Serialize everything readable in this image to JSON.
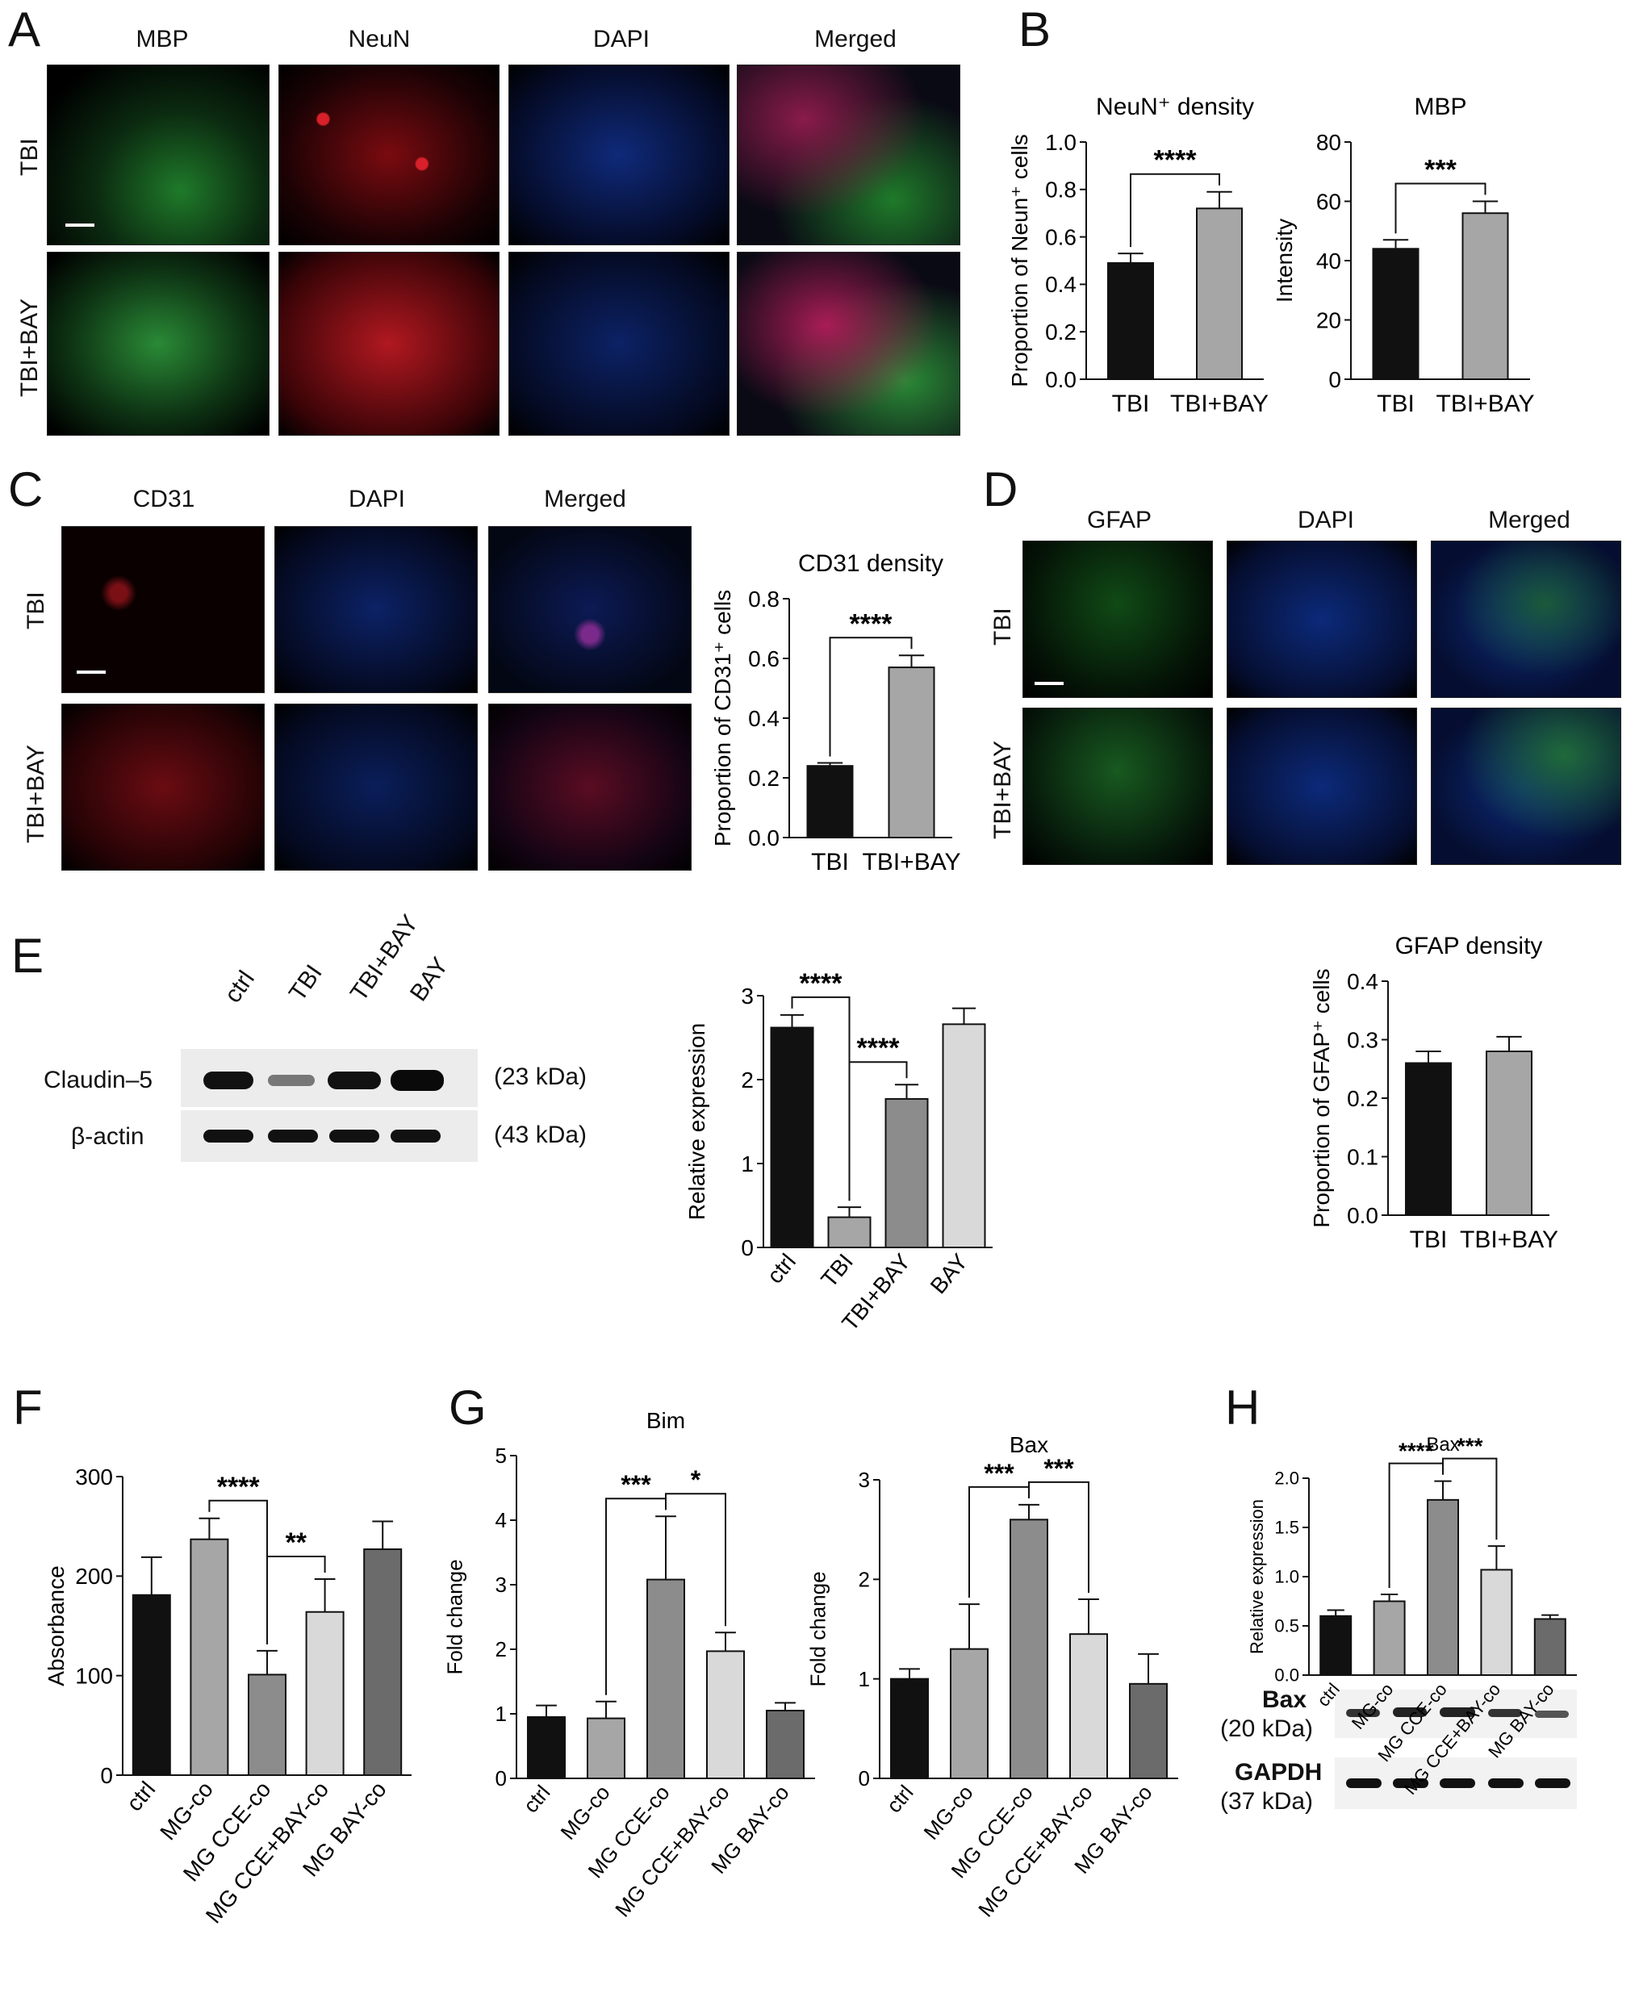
{
  "panels": [
    "A",
    "B",
    "C",
    "D",
    "E",
    "F",
    "G",
    "H"
  ],
  "panelA": {
    "columns": [
      "MBP",
      "NeuN",
      "DAPI",
      "Merged"
    ],
    "rows": [
      "TBI",
      "TBI+BAY"
    ]
  },
  "panelC": {
    "columns": [
      "CD31",
      "DAPI",
      "Merged"
    ],
    "rows": [
      "TBI",
      "TBI+BAY"
    ]
  },
  "panelD": {
    "columns": [
      "GFAP",
      "DAPI",
      "Merged"
    ],
    "rows": [
      "TBI",
      "TBI+BAY"
    ]
  },
  "panelE_blot": {
    "lanes": [
      "ctrl",
      "TBI",
      "TBI+BAY",
      "BAY"
    ],
    "bands": [
      {
        "name": "Claudin–5",
        "size": "(23 kDa)"
      },
      {
        "name": "β-actin",
        "size": "(43 kDa)"
      }
    ]
  },
  "panelH_blot": {
    "bands": [
      {
        "name": "Bax",
        "size": "(20 kDa)"
      },
      {
        "name": "GAPDH",
        "size": "(37 kDa)"
      }
    ]
  },
  "colors": {
    "black": "#111111",
    "grey1": "#a6a6a6",
    "grey2": "#8c8c8c",
    "grey3": "#d9d9d9",
    "grey4": "#6b6b6b",
    "green": "#3ac24a",
    "red": "#e0202a",
    "blue": "#2a63d8"
  },
  "chart_data": [
    {
      "id": "B1",
      "type": "bar",
      "title": "NeuN⁺ density",
      "ylabel": "Proportion of Neun⁺ cells",
      "xlabel": "",
      "categories": [
        "TBI",
        "TBI+BAY"
      ],
      "values": [
        0.49,
        0.72
      ],
      "errors": [
        0.04,
        0.07
      ],
      "ylim": [
        0,
        1.0
      ],
      "yticks": [
        0.0,
        0.2,
        0.4,
        0.6,
        0.8,
        1.0
      ],
      "tickfmt": 1,
      "colors": [
        "#111111",
        "#a6a6a6"
      ],
      "sig": [
        {
          "from": 0,
          "to": 1,
          "label": "****"
        }
      ]
    },
    {
      "id": "B2",
      "type": "bar",
      "title": "MBP",
      "ylabel": "Intensity",
      "xlabel": "",
      "categories": [
        "TBI",
        "TBI+BAY"
      ],
      "values": [
        44,
        56
      ],
      "errors": [
        3,
        4
      ],
      "ylim": [
        0,
        80
      ],
      "yticks": [
        0,
        20,
        40,
        60,
        80
      ],
      "tickfmt": 0,
      "colors": [
        "#111111",
        "#a6a6a6"
      ],
      "sig": [
        {
          "from": 0,
          "to": 1,
          "label": "***"
        }
      ]
    },
    {
      "id": "C",
      "type": "bar",
      "title": "CD31 density",
      "ylabel": "Proportion of CD31⁺ cells",
      "xlabel": "",
      "categories": [
        "TBI",
        "TBI+BAY"
      ],
      "values": [
        0.24,
        0.57
      ],
      "errors": [
        0.01,
        0.04
      ],
      "ylim": [
        0,
        0.8
      ],
      "yticks": [
        0.0,
        0.2,
        0.4,
        0.6,
        0.8
      ],
      "tickfmt": 1,
      "colors": [
        "#111111",
        "#a6a6a6"
      ],
      "sig": [
        {
          "from": 0,
          "to": 1,
          "label": "****"
        }
      ]
    },
    {
      "id": "D",
      "type": "bar",
      "title": "GFAP density",
      "ylabel": "Proportion of GFAP⁺ cells",
      "xlabel": "",
      "categories": [
        "TBI",
        "TBI+BAY"
      ],
      "values": [
        0.26,
        0.28
      ],
      "errors": [
        0.02,
        0.025
      ],
      "ylim": [
        0,
        0.4
      ],
      "yticks": [
        0.0,
        0.1,
        0.2,
        0.3,
        0.4
      ],
      "tickfmt": 1,
      "colors": [
        "#111111",
        "#a6a6a6"
      ],
      "sig": []
    },
    {
      "id": "E",
      "type": "bar",
      "title": "",
      "ylabel": "Relative expression",
      "xlabel": "",
      "categories": [
        "ctrl",
        "TBI",
        "TBI+BAY",
        "BAY"
      ],
      "values": [
        2.62,
        0.36,
        1.77,
        2.66
      ],
      "errors": [
        0.15,
        0.12,
        0.17,
        0.19
      ],
      "ylim": [
        0,
        3
      ],
      "yticks": [
        0,
        1,
        2,
        3
      ],
      "tickfmt": 0,
      "colors": [
        "#111111",
        "#a6a6a6",
        "#8c8c8c",
        "#d9d9d9"
      ],
      "sig": [
        {
          "from": 0,
          "to": 1,
          "label": "****"
        },
        {
          "from": 1,
          "to": 2,
          "label": "****"
        }
      ]
    },
    {
      "id": "F",
      "type": "bar",
      "title": "",
      "ylabel": "Absorbance",
      "xlabel": "",
      "categories": [
        "ctrl",
        "MG-co",
        "MG CCE-co",
        "MG CCE+BAY-co",
        "MG BAY-co"
      ],
      "values": [
        181,
        237,
        101,
        164,
        227
      ],
      "errors": [
        38,
        21,
        24,
        33,
        28
      ],
      "ylim": [
        0,
        300
      ],
      "yticks": [
        0,
        100,
        200,
        300
      ],
      "tickfmt": 0,
      "colors": [
        "#111111",
        "#a6a6a6",
        "#8c8c8c",
        "#d9d9d9",
        "#6b6b6b"
      ],
      "sig": [
        {
          "from": 1,
          "to": 2,
          "label": "****"
        },
        {
          "from": 2,
          "to": 3,
          "label": "**"
        }
      ]
    },
    {
      "id": "G1",
      "type": "bar",
      "title": "Bim",
      "ylabel": "Fold change",
      "xlabel": "",
      "categories": [
        "ctrl",
        "MG-co",
        "MG CCE-co",
        "MG CCE+BAY-co",
        "MG BAY-co"
      ],
      "values": [
        0.95,
        0.93,
        3.08,
        1.97,
        1.05
      ],
      "errors": [
        0.18,
        0.26,
        0.98,
        0.29,
        0.12
      ],
      "ylim": [
        0,
        5
      ],
      "yticks": [
        0,
        1,
        2,
        3,
        4,
        5
      ],
      "tickfmt": 0,
      "colors": [
        "#111111",
        "#a6a6a6",
        "#8c8c8c",
        "#d9d9d9",
        "#6b6b6b"
      ],
      "sig": [
        {
          "from": 1,
          "to": 2,
          "label": "***"
        },
        {
          "from": 2,
          "to": 3,
          "label": "*"
        }
      ]
    },
    {
      "id": "G2",
      "type": "bar",
      "title": "Bax",
      "ylabel": "Fold change",
      "xlabel": "",
      "categories": [
        "ctrl",
        "MG-co",
        "MG CCE-co",
        "MG CCE+BAY-co",
        "MG BAY-co"
      ],
      "values": [
        1.0,
        1.3,
        2.6,
        1.45,
        0.95
      ],
      "errors": [
        0.1,
        0.45,
        0.15,
        0.35,
        0.3
      ],
      "ylim": [
        0,
        3
      ],
      "yticks": [
        0,
        1,
        2,
        3
      ],
      "tickfmt": 0,
      "colors": [
        "#111111",
        "#a6a6a6",
        "#8c8c8c",
        "#d9d9d9",
        "#6b6b6b"
      ],
      "sig": [
        {
          "from": 1,
          "to": 2,
          "label": "***"
        },
        {
          "from": 2,
          "to": 3,
          "label": "***"
        }
      ]
    },
    {
      "id": "H",
      "type": "bar",
      "title": "Bax",
      "ylabel": "Relative expression",
      "xlabel": "",
      "categories": [
        "ctrl",
        "MG-co",
        "MG CCE-co",
        "MG CCE+BAY-co",
        "MG BAY-co"
      ],
      "values": [
        0.6,
        0.75,
        1.78,
        1.07,
        0.57
      ],
      "errors": [
        0.06,
        0.07,
        0.19,
        0.24,
        0.04
      ],
      "ylim": [
        0,
        2.0
      ],
      "yticks": [
        0.0,
        0.5,
        1.0,
        1.5,
        2.0
      ],
      "tickfmt": 1,
      "colors": [
        "#111111",
        "#a6a6a6",
        "#8c8c8c",
        "#d9d9d9",
        "#6b6b6b"
      ],
      "sig": [
        {
          "from": 1,
          "to": 2,
          "label": "****"
        },
        {
          "from": 2,
          "to": 3,
          "label": "***"
        }
      ]
    }
  ]
}
